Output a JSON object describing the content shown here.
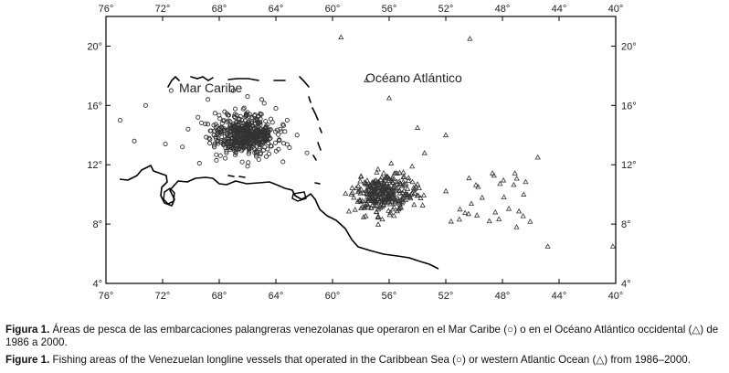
{
  "map": {
    "lon_ticks": [
      "76°",
      "72°",
      "68°",
      "64°",
      "60°",
      "56°",
      "52°",
      "48°",
      "44°",
      "40°"
    ],
    "lat_ticks": [
      "20°",
      "16°",
      "12°",
      "8°",
      "4°"
    ],
    "labels": {
      "caribbean": "Mar Caribe",
      "atlantic": "Océano Atlántico"
    },
    "legend_symbols": {
      "caribbean": "circle",
      "atlantic": "triangle"
    },
    "colors": {
      "frame": "#000000",
      "coast": "#000000",
      "points": "#333333",
      "background": "#ffffff"
    }
  },
  "chart_data": {
    "type": "scatter",
    "xlabel": "",
    "ylabel": "",
    "xlim": [
      -76,
      -40
    ],
    "ylim": [
      4,
      22
    ],
    "series": [
      {
        "name": "Mar Caribe",
        "marker": "circle",
        "points": [
          [
            -75,
            15.0
          ],
          [
            -74,
            13.6
          ],
          [
            -73.2,
            16.0
          ],
          [
            -71.4,
            17.0
          ],
          [
            -71.8,
            13.4
          ],
          [
            -70.2,
            14.4
          ],
          [
            -69.5,
            15.2
          ],
          [
            -68.8,
            16.4
          ],
          [
            -68.2,
            12.3
          ],
          [
            -67.0,
            17.0
          ],
          [
            -66.0,
            16.6
          ],
          [
            -65.0,
            16.4
          ],
          [
            -64.0,
            15.8
          ],
          [
            -63.2,
            15.0
          ],
          [
            -62.5,
            14.0
          ],
          [
            -61.8,
            12.8
          ],
          [
            -63.5,
            12.2
          ],
          [
            -66.0,
            11.9
          ],
          [
            -69.4,
            12.1
          ],
          [
            -70.6,
            13.2
          ]
        ]
      },
      {
        "name": "Océano Atlántico",
        "marker": "triangle",
        "points": [
          [
            -59.4,
            20.6
          ],
          [
            -50.3,
            20.5
          ],
          [
            -57.6,
            17.7
          ],
          [
            -56.0,
            16.5
          ],
          [
            -54.0,
            14.5
          ],
          [
            -52.0,
            14.0
          ],
          [
            -45.5,
            12.5
          ],
          [
            -46.5,
            10.0
          ],
          [
            -48.5,
            8.8
          ],
          [
            -47.0,
            7.8
          ],
          [
            -44.8,
            6.5
          ],
          [
            -40.2,
            6.5
          ],
          [
            -53.5,
            12.8
          ],
          [
            -58.0,
            11.2
          ],
          [
            -55.0,
            11.5
          ],
          [
            -51.0,
            9.0
          ],
          [
            -49.8,
            8.6
          ]
        ]
      }
    ]
  },
  "caption": {
    "es_label": "Figura 1.",
    "es_text": " Áreas de pesca de las embarcaciones palangreras venezolanas que operaron en el Mar Caribe (○) o en el Océano Atlántico occidental (△) de 1986 a 2000.",
    "en_label": "Figure 1.",
    "en_text": " Fishing areas of the Venezuelan longline vessels that operated in the Caribbean Sea (○) or western Atlantic Ocean (△) from 1986–2000."
  }
}
